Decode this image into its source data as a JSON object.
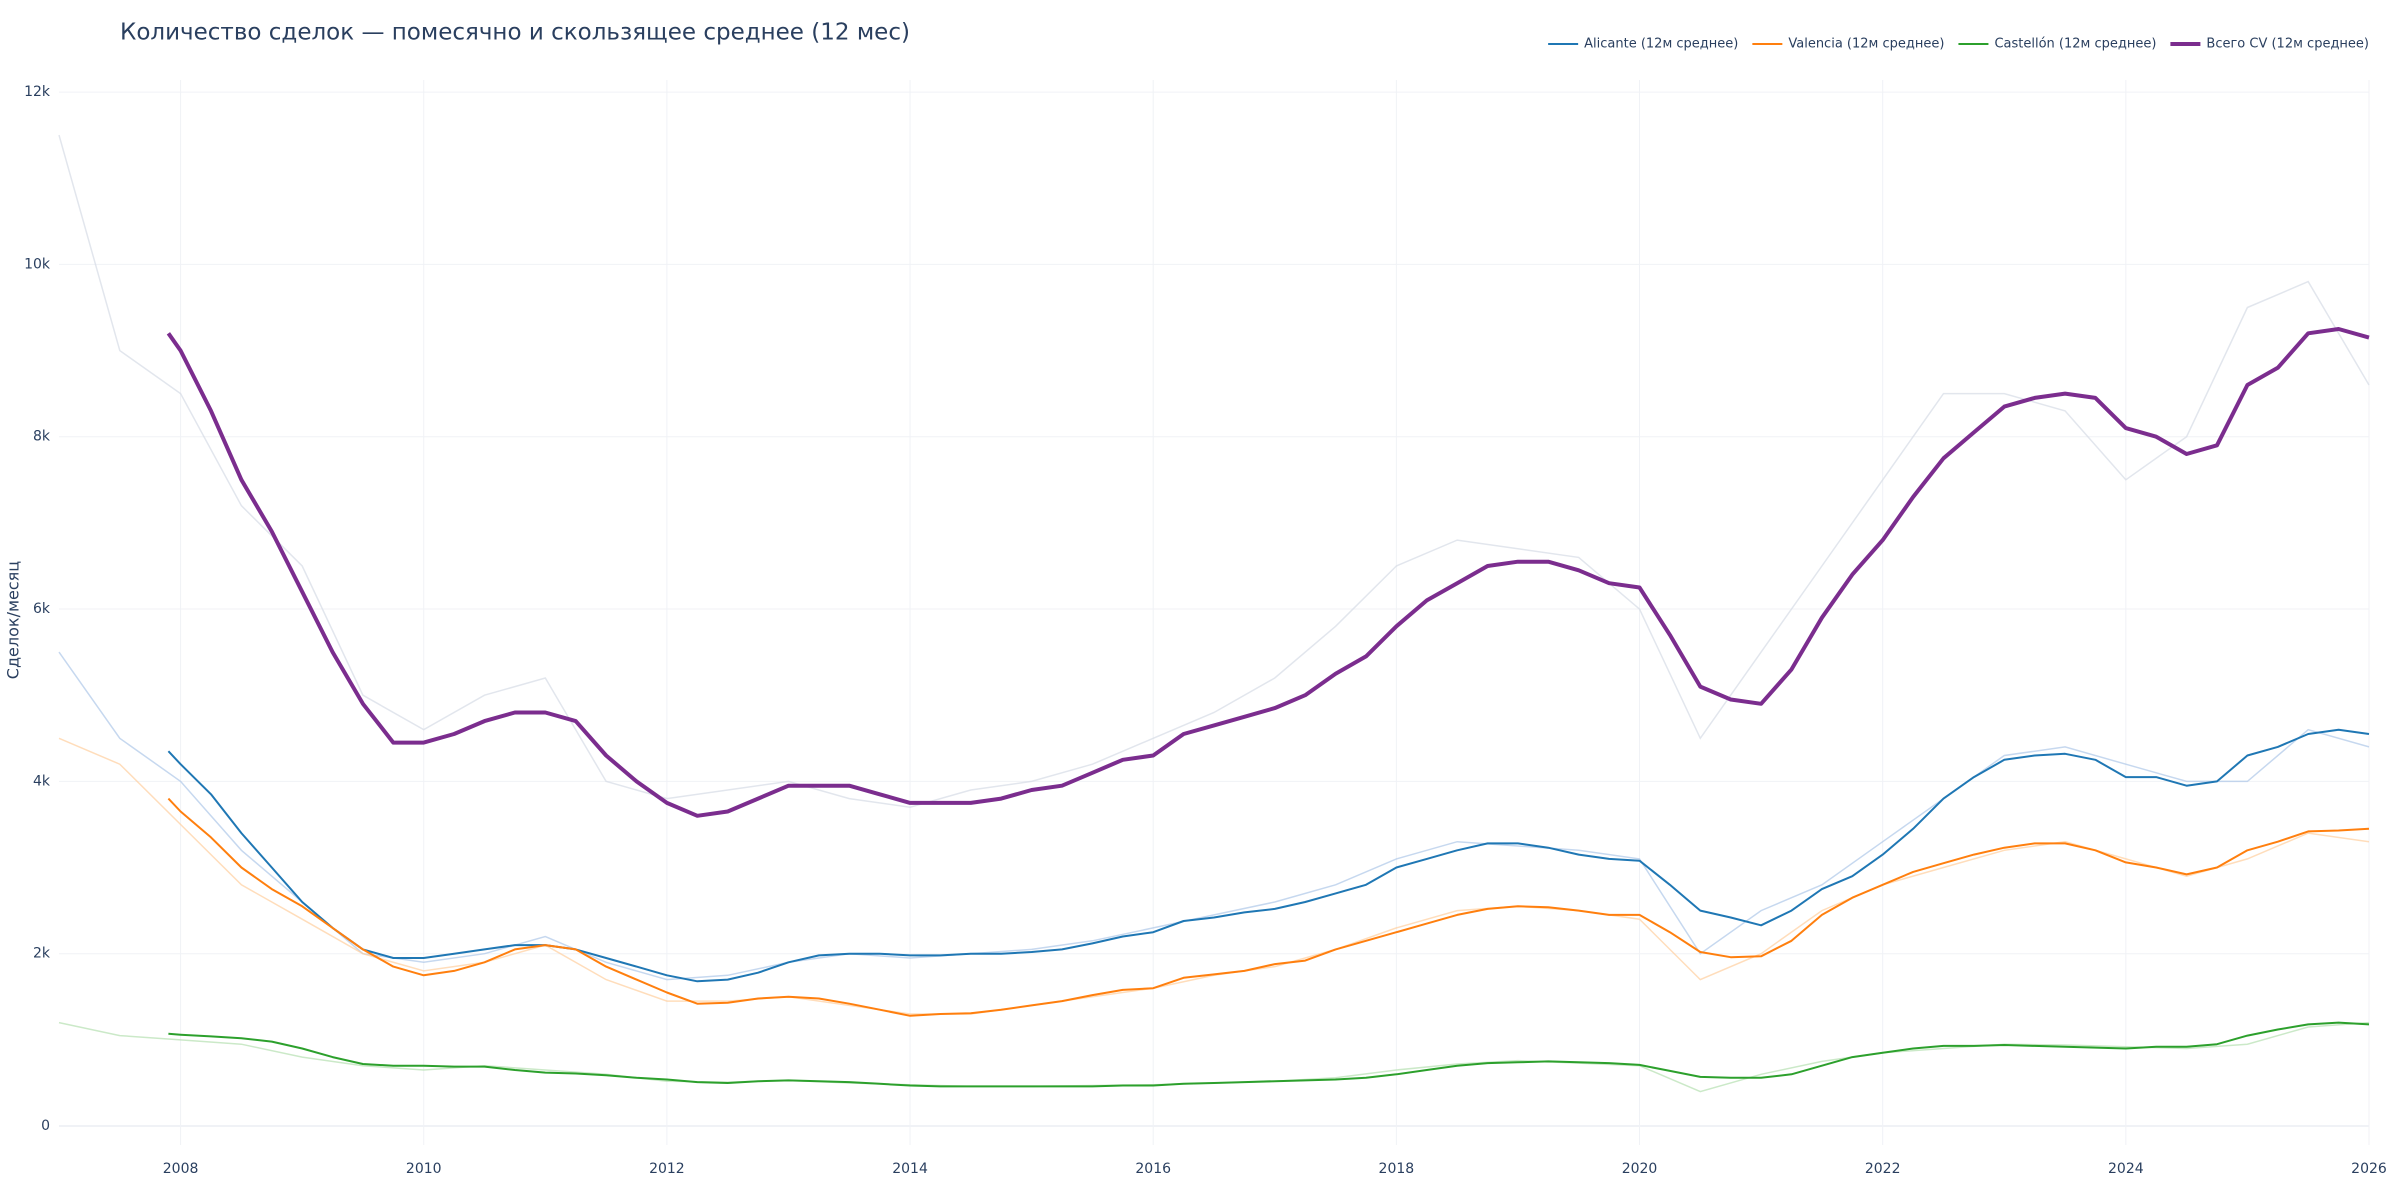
{
  "chart_data": {
    "type": "line",
    "title": "Количество сделок — помесячно и скользящее среднее (12 мес)",
    "y_label": "Сделок/месяц",
    "xlim": [
      2007,
      2026
    ],
    "xticks": [
      2008,
      2010,
      2012,
      2014,
      2016,
      2018,
      2020,
      2022,
      2024,
      2026
    ],
    "ylim": [
      -220,
      12140
    ],
    "yticks": [
      0,
      {
        "value": 2000,
        "label": "2k"
      },
      {
        "value": 4000,
        "label": "4k"
      },
      {
        "value": 6000,
        "label": "6k"
      },
      {
        "value": 8000,
        "label": "8k"
      },
      {
        "value": 10000,
        "label": "10k"
      },
      {
        "value": 12000,
        "label": "12k"
      }
    ],
    "grid": true,
    "legend": "top-right",
    "x": [
      2007.9,
      2008,
      2008.25,
      2008.5,
      2008.75,
      2009,
      2009.25,
      2009.5,
      2009.75,
      2010,
      2010.25,
      2010.5,
      2010.75,
      2011,
      2011.25,
      2011.5,
      2011.75,
      2012,
      2012.25,
      2012.5,
      2012.75,
      2013,
      2013.25,
      2013.5,
      2013.75,
      2014,
      2014.25,
      2014.5,
      2014.75,
      2015,
      2015.25,
      2015.5,
      2015.75,
      2016,
      2016.25,
      2016.5,
      2016.75,
      2017,
      2017.25,
      2017.5,
      2017.75,
      2018,
      2018.25,
      2018.5,
      2018.75,
      2019,
      2019.25,
      2019.5,
      2019.75,
      2020,
      2020.25,
      2020.5,
      2020.75,
      2021,
      2021.25,
      2021.5,
      2021.75,
      2022,
      2022.25,
      2022.5,
      2022.75,
      2023,
      2023.25,
      2023.5,
      2023.75,
      2024,
      2024.25,
      2024.5,
      2024.75,
      2025,
      2025.25,
      2025.5,
      2025.75,
      2026
    ],
    "series": [
      {
        "name": "Alicante (12м среднее)",
        "color": "#1f77b4",
        "width": 2,
        "values": [
          4350,
          4200,
          3850,
          3400,
          3000,
          2600,
          2300,
          2050,
          1950,
          1950,
          2000,
          2050,
          2100,
          2100,
          2050,
          1950,
          1850,
          1750,
          1680,
          1700,
          1780,
          1900,
          1980,
          2000,
          2000,
          1980,
          1980,
          2000,
          2000,
          2020,
          2050,
          2120,
          2200,
          2250,
          2380,
          2420,
          2480,
          2520,
          2600,
          2700,
          2800,
          3000,
          3100,
          3200,
          3280,
          3280,
          3230,
          3150,
          3100,
          3080,
          2800,
          2500,
          2420,
          2330,
          2500,
          2750,
          2900,
          3150,
          3450,
          3800,
          4050,
          4250,
          4300,
          4320,
          4250,
          4050,
          4050,
          3950,
          4000,
          4300,
          4400,
          4550,
          4600,
          4550
        ]
      },
      {
        "name": "Valencia (12м среднее)",
        "color": "#ff7f0e",
        "width": 2,
        "values": [
          3800,
          3650,
          3350,
          3000,
          2750,
          2550,
          2300,
          2050,
          1850,
          1750,
          1800,
          1900,
          2050,
          2100,
          2050,
          1850,
          1700,
          1550,
          1420,
          1430,
          1480,
          1500,
          1480,
          1420,
          1350,
          1280,
          1300,
          1310,
          1350,
          1400,
          1450,
          1520,
          1580,
          1600,
          1720,
          1760,
          1800,
          1880,
          1920,
          2050,
          2150,
          2250,
          2350,
          2450,
          2520,
          2550,
          2540,
          2500,
          2450,
          2450,
          2250,
          2020,
          1960,
          1970,
          2150,
          2450,
          2650,
          2800,
          2950,
          3050,
          3150,
          3230,
          3280,
          3280,
          3200,
          3060,
          3000,
          2920,
          3000,
          3200,
          3300,
          3420,
          3430,
          3450
        ]
      },
      {
        "name": "Castellón (12м среднее)",
        "color": "#2ca02c",
        "width": 2,
        "values": [
          1070,
          1060,
          1040,
          1020,
          980,
          900,
          800,
          720,
          700,
          700,
          690,
          690,
          650,
          620,
          610,
          590,
          560,
          540,
          510,
          500,
          520,
          530,
          520,
          510,
          490,
          470,
          460,
          460,
          460,
          460,
          460,
          460,
          470,
          470,
          490,
          500,
          510,
          520,
          530,
          540,
          560,
          600,
          650,
          700,
          730,
          740,
          750,
          740,
          730,
          710,
          640,
          570,
          560,
          560,
          600,
          700,
          800,
          850,
          900,
          930,
          930,
          940,
          930,
          920,
          910,
          900,
          920,
          920,
          950,
          1050,
          1120,
          1180,
          1200,
          1180
        ]
      },
      {
        "name": "Всего CV (12м среднее)",
        "color": "#7b2d8e",
        "width": 4,
        "values": [
          9200,
          9000,
          8300,
          7500,
          6900,
          6200,
          5500,
          4900,
          4450,
          4450,
          4550,
          4700,
          4800,
          4800,
          4700,
          4300,
          4000,
          3750,
          3600,
          3650,
          3800,
          3950,
          3950,
          3950,
          3850,
          3750,
          3750,
          3750,
          3800,
          3900,
          3950,
          4100,
          4250,
          4300,
          4550,
          4650,
          4750,
          4850,
          5000,
          5250,
          5450,
          5800,
          6100,
          6300,
          6500,
          6550,
          6550,
          6450,
          6300,
          6250,
          5700,
          5100,
          4950,
          4900,
          5300,
          5900,
          6400,
          6800,
          7300,
          7750,
          8050,
          8350,
          8450,
          8500,
          8450,
          8100,
          8000,
          7800,
          7900,
          8600,
          8800,
          9200,
          9250,
          9150
        ]
      }
    ],
    "raw_x": [
      2007,
      2007.5,
      2008,
      2008.5,
      2009,
      2009.5,
      2010,
      2010.5,
      2011,
      2011.5,
      2012,
      2012.5,
      2013,
      2013.5,
      2014,
      2014.5,
      2015,
      2015.5,
      2016,
      2016.5,
      2017,
      2017.5,
      2018,
      2018.5,
      2019,
      2019.5,
      2020,
      2020.5,
      2021,
      2021.5,
      2022,
      2022.5,
      2023,
      2023.5,
      2024,
      2024.5,
      2025,
      2025.5,
      2026
    ],
    "raw_series": [
      {
        "color": "#aec7e8",
        "values": [
          5500,
          4500,
          4000,
          3200,
          2600,
          2000,
          1900,
          2000,
          2200,
          1900,
          1700,
          1750,
          1900,
          2000,
          1950,
          2000,
          2050,
          2150,
          2300,
          2450,
          2600,
          2800,
          3100,
          3300,
          3250,
          3200,
          3100,
          2000,
          2500,
          2800,
          3300,
          3800,
          4300,
          4400,
          4200,
          4000,
          4000,
          4600,
          4400
        ]
      },
      {
        "color": "#ffcf9e",
        "values": [
          4500,
          4200,
          3500,
          2800,
          2400,
          2000,
          1800,
          1900,
          2100,
          1700,
          1450,
          1450,
          1500,
          1400,
          1300,
          1300,
          1400,
          1500,
          1600,
          1750,
          1850,
          2050,
          2300,
          2500,
          2550,
          2500,
          2400,
          1700,
          2000,
          2500,
          2800,
          3000,
          3200,
          3300,
          3100,
          2900,
          3100,
          3400,
          3300
        ]
      },
      {
        "color": "#b5dfb0",
        "values": [
          1200,
          1050,
          1000,
          950,
          800,
          700,
          650,
          700,
          650,
          600,
          520,
          510,
          530,
          500,
          480,
          460,
          460,
          470,
          480,
          500,
          520,
          560,
          650,
          720,
          760,
          730,
          700,
          400,
          600,
          750,
          850,
          900,
          950,
          940,
          920,
          900,
          950,
          1150,
          1200
        ]
      },
      {
        "color": "#d5dbe6",
        "values": [
          11500,
          9000,
          8500,
          7200,
          6500,
          5000,
          4600,
          5000,
          5200,
          4000,
          3800,
          3900,
          4000,
          3800,
          3700,
          3900,
          4000,
          4200,
          4500,
          4800,
          5200,
          5800,
          6500,
          6800,
          6700,
          6600,
          6000,
          4500,
          5500,
          6500,
          7500,
          8500,
          8500,
          8300,
          7500,
          8000,
          9500,
          9800,
          8600
        ]
      }
    ]
  }
}
